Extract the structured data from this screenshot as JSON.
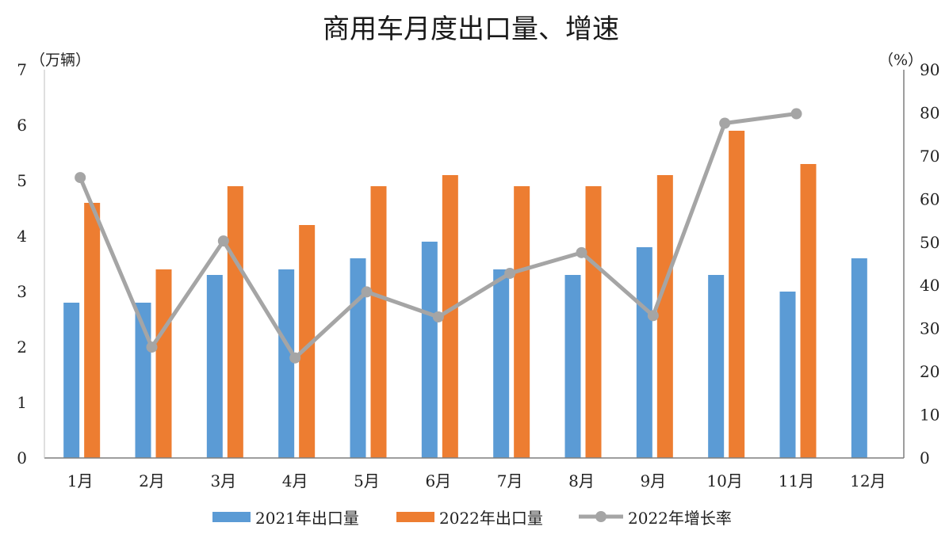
{
  "chart_data": {
    "type": "bar",
    "title": "商用车月度出口量、增速",
    "y_left_unit": "（万辆）",
    "y_right_unit": "（%）",
    "ylim_left": [
      0,
      7
    ],
    "ylim_right": [
      0,
      90
    ],
    "y_left_ticks": [
      "0",
      "1",
      "2",
      "3",
      "4",
      "5",
      "6",
      "7"
    ],
    "y_right_ticks": [
      "0",
      "10",
      "20",
      "30",
      "40",
      "50",
      "60",
      "70",
      "80",
      "90"
    ],
    "categories": [
      "1月",
      "2月",
      "3月",
      "4月",
      "5月",
      "6月",
      "7月",
      "8月",
      "9月",
      "10月",
      "11月",
      "12月"
    ],
    "series": [
      {
        "name": "2021年出口量",
        "kind": "bar",
        "axis": "left",
        "color": "#5b9bd5",
        "values": [
          2.8,
          2.8,
          3.3,
          3.4,
          3.6,
          3.9,
          3.4,
          3.3,
          3.8,
          3.3,
          3.0,
          3.6
        ]
      },
      {
        "name": "2022年出口量",
        "kind": "bar",
        "axis": "left",
        "color": "#ed7d31",
        "values": [
          4.6,
          3.4,
          4.9,
          4.2,
          4.9,
          5.1,
          4.9,
          4.9,
          5.1,
          5.9,
          5.3,
          null
        ]
      },
      {
        "name": "2022年增长率",
        "kind": "line",
        "axis": "right",
        "color": "#a5a5a5",
        "values": [
          65,
          25.7,
          50.3,
          23.2,
          38.5,
          32.7,
          42.8,
          47.6,
          33,
          77.6,
          79.8,
          null
        ]
      }
    ],
    "grid": false,
    "legend": "bottom"
  }
}
